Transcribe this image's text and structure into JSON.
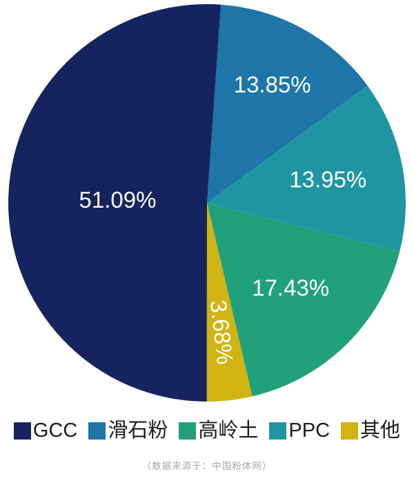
{
  "chart_data": {
    "type": "pie",
    "title": "",
    "legend_position": "bottom",
    "start_angle_deg": 4,
    "center": [
      300,
      294
    ],
    "radius": 288,
    "label_color": "#ffffff",
    "series": [
      {
        "name": "滑石粉",
        "value": 13.85,
        "label": "13.85%",
        "color": "#1e76a8",
        "label_radius": 0.68,
        "label_rotate": false
      },
      {
        "name": "PPC",
        "value": 13.95,
        "label": "13.95%",
        "color": "#1f95a3",
        "label_radius": 0.62,
        "label_rotate": false
      },
      {
        "name": "高岭土",
        "value": 17.43,
        "label": "17.43%",
        "color": "#21a17b",
        "label_radius": 0.6,
        "label_rotate": false
      },
      {
        "name": "其他",
        "value": 3.68,
        "label": "3.68%",
        "color": "#d1b411",
        "label_radius": 0.655,
        "label_rotate": true
      },
      {
        "name": "GCC",
        "value": 51.09,
        "label": "51.09%",
        "color": "#15245f",
        "label_radius": 0.45,
        "label_rotate": false
      }
    ],
    "legend": [
      {
        "label": "GCC",
        "color": "#15245f"
      },
      {
        "label": "滑石粉",
        "color": "#1e76a8"
      },
      {
        "label": "高岭土",
        "color": "#21a17b"
      },
      {
        "label": "PPC",
        "color": "#1f95a3"
      },
      {
        "label": "其他",
        "color": "#d1b411"
      }
    ]
  },
  "footer": {
    "source_note": "（数据来源于：中国粉体网）"
  }
}
